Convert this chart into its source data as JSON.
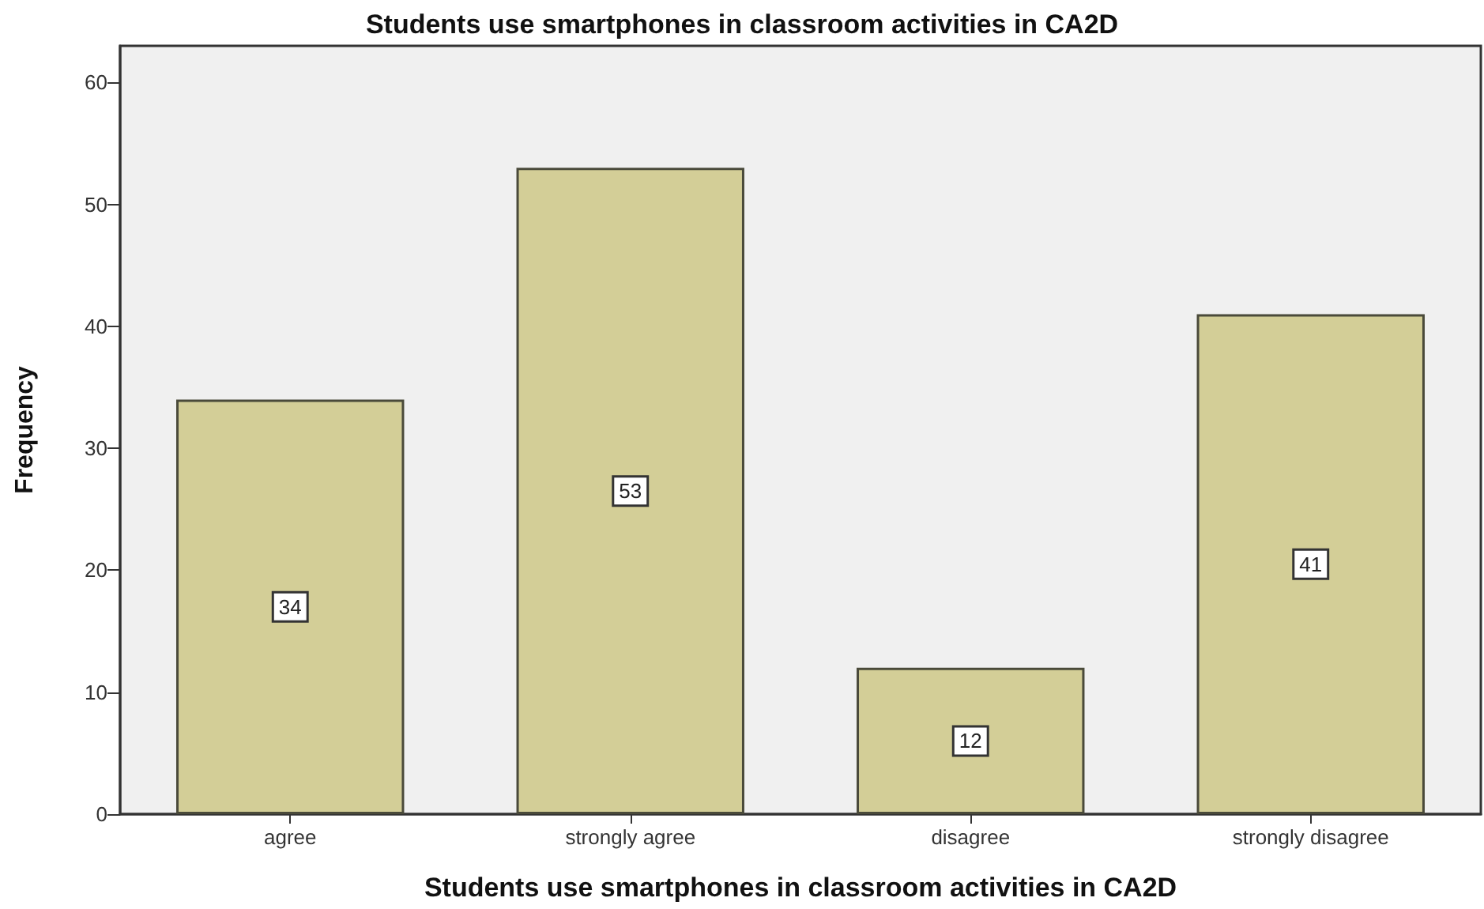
{
  "chart_data": {
    "type": "bar",
    "title": "Students use smartphones in classroom activities in CA2D",
    "xlabel": "Students use smartphones in classroom activities in CA2D",
    "ylabel": "Frequency",
    "categories": [
      "agree",
      "strongly agree",
      "disagree",
      "strongly disagree"
    ],
    "values": [
      34,
      53,
      12,
      41
    ],
    "color": "#d3ce97",
    "ylim": [
      0,
      63
    ],
    "yticks": [
      0,
      10,
      20,
      30,
      40,
      50,
      60
    ],
    "grid": false,
    "data_labels": true
  }
}
